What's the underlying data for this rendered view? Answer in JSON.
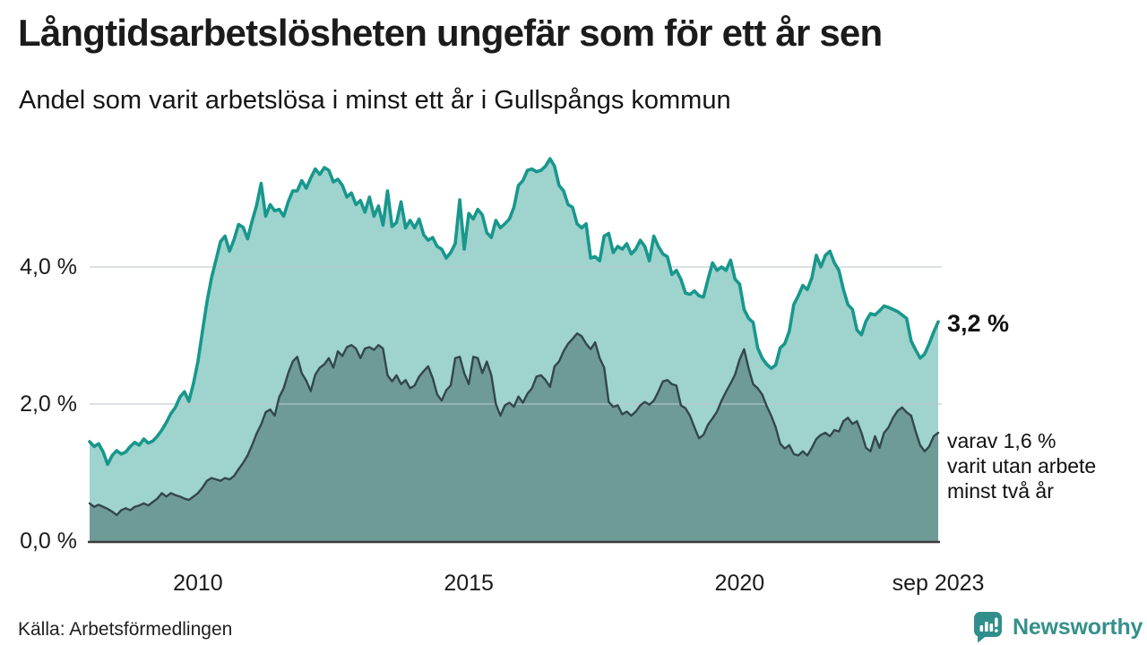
{
  "header": {
    "title": "Långtidsarbetslösheten ungefär som för ett år sen",
    "subtitle": "Andel som varit arbetslösa i minst ett år i Gullspångs kommun"
  },
  "annotations": {
    "value_label": "3,2 %",
    "sub_lines": [
      "varav 1,6 %",
      "varit utan arbete",
      "minst två år"
    ]
  },
  "source": {
    "label": "Källa: Arbetsförmedlingen"
  },
  "branding": {
    "name": "Newsworthy",
    "icon": "newsworthy-speech-bubble-bar-chart-icon",
    "color": "#35908b"
  },
  "chart_data": {
    "type": "area",
    "title": "Långtidsarbetslösheten ungefär som för ett år sen",
    "subtitle": "Andel som varit arbetslösa i minst ett år i Gullspångs kommun",
    "unit": "%",
    "frequency": "monthly",
    "x_start": "2008-01",
    "x_end": "2023-09",
    "ylim": [
      0,
      5.8
    ],
    "grid": "horizontal",
    "legend": "none",
    "y_ticks": [
      {
        "label": "4,0 %",
        "value": 4.0
      },
      {
        "label": "2,0 %",
        "value": 2.0
      },
      {
        "label": "0,0 %",
        "value": 0.0
      }
    ],
    "x_ticks": [
      {
        "label": "2010",
        "index": 24
      },
      {
        "label": "2015",
        "index": 84
      },
      {
        "label": "2020",
        "index": 144
      },
      {
        "label": "sep 2023",
        "index": 188
      }
    ],
    "series": [
      {
        "name": "Andel arbetslösa minst ett år",
        "line_color": "#18978c",
        "fill_color": "#9fd3ce",
        "end_label": "3,2 %",
        "values": [
          1.45,
          1.38,
          1.42,
          1.3,
          1.12,
          1.25,
          1.32,
          1.27,
          1.3,
          1.38,
          1.44,
          1.4,
          1.49,
          1.43,
          1.46,
          1.53,
          1.62,
          1.73,
          1.86,
          1.95,
          2.1,
          2.18,
          2.04,
          2.3,
          2.62,
          3.06,
          3.49,
          3.84,
          4.1,
          4.37,
          4.45,
          4.23,
          4.4,
          4.62,
          4.58,
          4.41,
          4.67,
          4.9,
          5.22,
          4.74,
          4.91,
          4.82,
          4.84,
          4.74,
          4.95,
          5.11,
          5.11,
          5.26,
          5.15,
          5.3,
          5.43,
          5.35,
          5.45,
          5.41,
          5.24,
          5.28,
          5.19,
          5.02,
          5.08,
          4.91,
          4.97,
          4.8,
          5.02,
          4.74,
          4.89,
          4.61,
          5.11,
          4.59,
          4.65,
          4.95,
          4.57,
          4.68,
          4.57,
          4.7,
          4.47,
          4.39,
          4.43,
          4.3,
          4.26,
          4.13,
          4.21,
          4.34,
          4.98,
          4.26,
          4.78,
          4.7,
          4.84,
          4.76,
          4.5,
          4.43,
          4.68,
          4.57,
          4.63,
          4.7,
          4.87,
          5.19,
          5.26,
          5.41,
          5.43,
          5.39,
          5.41,
          5.47,
          5.58,
          5.47,
          5.19,
          5.11,
          4.91,
          4.87,
          4.63,
          4.57,
          4.63,
          4.13,
          4.15,
          4.09,
          4.45,
          4.49,
          4.21,
          4.3,
          4.26,
          4.34,
          4.19,
          4.26,
          4.39,
          4.3,
          4.09,
          4.45,
          4.3,
          4.19,
          4.15,
          3.89,
          3.95,
          3.82,
          3.62,
          3.6,
          3.65,
          3.58,
          3.56,
          3.82,
          4.06,
          3.95,
          4.0,
          3.95,
          4.1,
          3.82,
          3.75,
          3.38,
          3.25,
          3.19,
          2.82,
          2.67,
          2.58,
          2.52,
          2.57,
          2.82,
          2.88,
          3.06,
          3.45,
          3.58,
          3.73,
          3.67,
          3.84,
          4.17,
          4.0,
          4.17,
          4.23,
          4.06,
          3.95,
          3.67,
          3.45,
          3.38,
          3.08,
          3.01,
          3.21,
          3.32,
          3.3,
          3.36,
          3.43,
          3.41,
          3.38,
          3.35,
          3.3,
          3.25,
          2.92,
          2.79,
          2.67,
          2.73,
          2.88,
          3.05,
          3.2
        ]
      },
      {
        "name": "varav arbetslösa minst två år",
        "line_color": "#33474b",
        "fill_color": "#6f9b97",
        "end_label": "varav 1,6 % varit utan arbete minst två år",
        "values": [
          0.55,
          0.5,
          0.53,
          0.5,
          0.47,
          0.43,
          0.38,
          0.45,
          0.48,
          0.45,
          0.5,
          0.52,
          0.55,
          0.52,
          0.57,
          0.62,
          0.7,
          0.65,
          0.7,
          0.67,
          0.65,
          0.62,
          0.6,
          0.65,
          0.7,
          0.78,
          0.88,
          0.92,
          0.9,
          0.88,
          0.92,
          0.9,
          0.95,
          1.05,
          1.14,
          1.25,
          1.4,
          1.57,
          1.7,
          1.88,
          1.92,
          1.83,
          2.1,
          2.23,
          2.45,
          2.62,
          2.69,
          2.45,
          2.34,
          2.19,
          2.43,
          2.53,
          2.58,
          2.67,
          2.53,
          2.77,
          2.7,
          2.83,
          2.86,
          2.81,
          2.67,
          2.81,
          2.83,
          2.79,
          2.86,
          2.81,
          2.42,
          2.33,
          2.42,
          2.29,
          2.35,
          2.23,
          2.27,
          2.4,
          2.48,
          2.55,
          2.38,
          2.14,
          2.05,
          2.2,
          2.27,
          2.67,
          2.69,
          2.45,
          2.29,
          2.69,
          2.67,
          2.45,
          2.62,
          2.42,
          2.0,
          1.83,
          1.98,
          2.02,
          1.96,
          2.11,
          2.02,
          2.15,
          2.23,
          2.4,
          2.42,
          2.35,
          2.25,
          2.55,
          2.62,
          2.77,
          2.88,
          2.95,
          3.03,
          2.99,
          2.88,
          2.8,
          2.9,
          2.67,
          2.53,
          2.03,
          1.96,
          1.98,
          1.85,
          1.89,
          1.83,
          1.89,
          1.98,
          2.03,
          1.99,
          2.05,
          2.18,
          2.33,
          2.35,
          2.29,
          2.27,
          1.98,
          1.94,
          1.83,
          1.66,
          1.5,
          1.55,
          1.7,
          1.79,
          1.89,
          2.05,
          2.18,
          2.3,
          2.43,
          2.65,
          2.8,
          2.52,
          2.29,
          2.23,
          2.14,
          1.97,
          1.83,
          1.66,
          1.42,
          1.35,
          1.4,
          1.27,
          1.25,
          1.31,
          1.25,
          1.36,
          1.49,
          1.55,
          1.58,
          1.53,
          1.62,
          1.6,
          1.75,
          1.8,
          1.71,
          1.75,
          1.58,
          1.36,
          1.31,
          1.53,
          1.36,
          1.58,
          1.66,
          1.8,
          1.9,
          1.95,
          1.88,
          1.83,
          1.6,
          1.4,
          1.31,
          1.38,
          1.53,
          1.58
        ]
      }
    ]
  }
}
